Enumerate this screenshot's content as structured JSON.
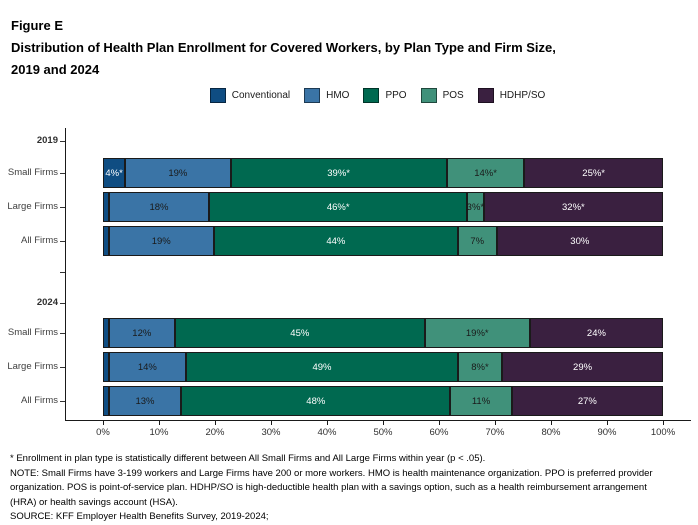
{
  "figure": {
    "label": "Figure E",
    "title_line1": "Distribution of Health Plan Enrollment for Covered Workers, by Plan Type and Firm Size,",
    "title_line2": "2019 and 2024"
  },
  "legend": [
    {
      "name": "Conventional",
      "color": "#0f4d82",
      "text_color": "#ffffff"
    },
    {
      "name": "HMO",
      "color": "#3a74a6",
      "text_color": "#1a1a1a"
    },
    {
      "name": "PPO",
      "color": "#006950",
      "text_color": "#ffffff"
    },
    {
      "name": "POS",
      "color": "#40917a",
      "text_color": "#1a1a1a"
    },
    {
      "name": "HDHP/SO",
      "color": "#3a2040",
      "text_color": "#ffffff"
    }
  ],
  "chart_data": {
    "type": "bar",
    "orientation": "horizontal_stacked",
    "title": "Distribution of Health Plan Enrollment for Covered Workers, by Plan Type and Firm Size, 2019 and 2024",
    "series": [
      "Conventional",
      "HMO",
      "PPO",
      "POS",
      "HDHP/SO"
    ],
    "x_axis": {
      "min": 0,
      "max": 100,
      "tick_labels": [
        "0%",
        "10%",
        "20%",
        "30%",
        "40%",
        "50%",
        "60%",
        "70%",
        "80%",
        "90%",
        "100%"
      ]
    },
    "legend_position": "top-center",
    "groups": [
      {
        "year": "2019",
        "rows": [
          {
            "category": "Small Firms",
            "values": [
              4,
              19,
              39,
              14,
              25
            ],
            "labels": [
              "4%*",
              "19%",
              "39%*",
              "14%*",
              "25%*"
            ]
          },
          {
            "category": "Large Firms",
            "values": [
              1,
              18,
              46,
              3,
              32
            ],
            "labels": [
              "",
              "18%",
              "46%*",
              "3%*",
              "32%*"
            ]
          },
          {
            "category": "All Firms",
            "values": [
              1,
              19,
              44,
              7,
              30
            ],
            "labels": [
              "",
              "19%",
              "44%",
              "7%",
              "30%"
            ]
          }
        ]
      },
      {
        "year": "2024",
        "rows": [
          {
            "category": "Small Firms",
            "values": [
              1,
              12,
              45,
              19,
              24
            ],
            "labels": [
              "",
              "12%",
              "45%",
              "19%*",
              "24%"
            ]
          },
          {
            "category": "Large Firms",
            "values": [
              1,
              14,
              49,
              8,
              29
            ],
            "labels": [
              "",
              "14%",
              "49%",
              "8%*",
              "29%"
            ]
          },
          {
            "category": "All Firms",
            "values": [
              1,
              13,
              48,
              11,
              27
            ],
            "labels": [
              "",
              "13%",
              "48%",
              "11%",
              "27%"
            ]
          }
        ]
      }
    ]
  },
  "footnotes": [
    "* Enrollment in plan type is statistically different between All Small Firms and All Large Firms within year (p < .05).",
    "NOTE: Small Firms have 3-199 workers and Large Firms have 200 or more workers. HMO is health maintenance organization. PPO is preferred provider",
    "organization. POS is point-of-service plan. HDHP/SO is high-deductible health plan with a savings option, such as a health reimbursement arrangement",
    "(HRA) or health savings account (HSA).",
    "SOURCE: KFF Employer Health Benefits Survey, 2019-2024;"
  ]
}
